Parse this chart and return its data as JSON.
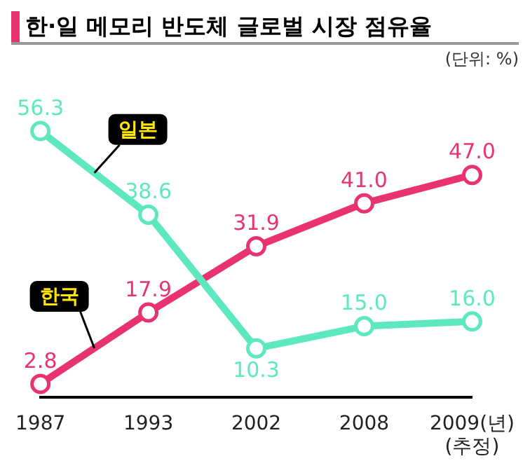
{
  "chart_data": {
    "type": "line",
    "title": "한·일 메모리 반도체 글로벌 시장 점유율",
    "annotations": [
      "(단위: %)"
    ],
    "categories": [
      "1987",
      "1993",
      "2002",
      "2008",
      "2009(년)\n(추정)"
    ],
    "series": [
      {
        "name": "일본",
        "color": "#5ee8c0",
        "values": [
          56.3,
          38.6,
          10.3,
          15.0,
          16.0
        ],
        "value_labels": [
          "56.3",
          "38.6",
          "10.3",
          "15.0",
          "16.0"
        ]
      },
      {
        "name": "한국",
        "color": "#e8336e",
        "values": [
          2.8,
          17.9,
          31.9,
          41.0,
          47.0
        ],
        "value_labels": [
          "2.8",
          "17.9",
          "31.9",
          "41.0",
          "47.0"
        ]
      }
    ],
    "marker": "circle",
    "line_style": "solid",
    "grid": false,
    "legend": false,
    "tick_labels": "x"
  }
}
